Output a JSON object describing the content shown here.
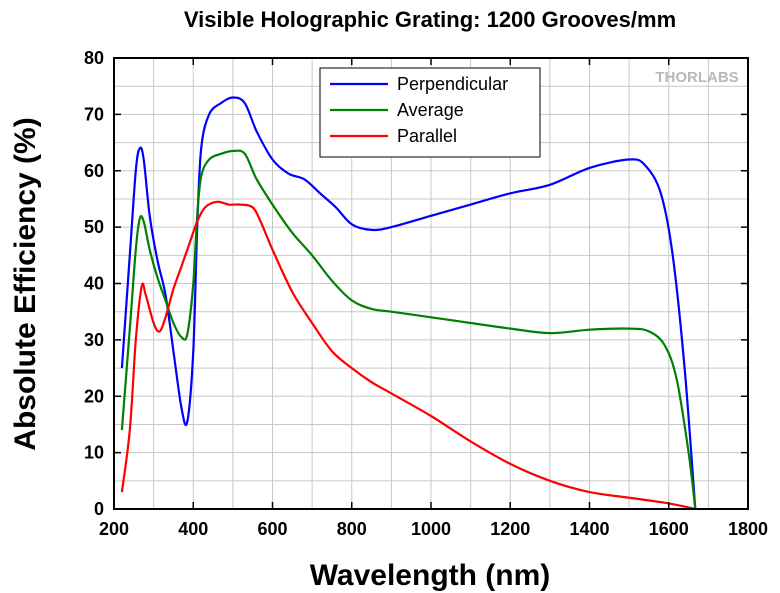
{
  "logo": "THORLABS",
  "chart_data": {
    "type": "line",
    "title": "Visible Holographic Grating: 1200 Grooves/mm",
    "xlabel": "Wavelength (nm)",
    "ylabel": "Absolute Efficiency (%)",
    "xlim": [
      200,
      1800
    ],
    "ylim": [
      0,
      80
    ],
    "xticks": [
      200,
      400,
      600,
      800,
      1000,
      1200,
      1400,
      1600,
      1800
    ],
    "yticks": [
      0,
      10,
      20,
      30,
      40,
      50,
      60,
      70,
      80
    ],
    "grid": true,
    "legend_position": "top-center",
    "series": [
      {
        "name": "Perpendicular",
        "color": "#0000ff",
        "points": [
          [
            220,
            25
          ],
          [
            240,
            45
          ],
          [
            255,
            60
          ],
          [
            265,
            64
          ],
          [
            275,
            62
          ],
          [
            290,
            52
          ],
          [
            310,
            44
          ],
          [
            330,
            38
          ],
          [
            350,
            28
          ],
          [
            370,
            18
          ],
          [
            385,
            15.5
          ],
          [
            400,
            28
          ],
          [
            410,
            50
          ],
          [
            420,
            64
          ],
          [
            440,
            70
          ],
          [
            470,
            72
          ],
          [
            500,
            73
          ],
          [
            530,
            72
          ],
          [
            560,
            67
          ],
          [
            600,
            62
          ],
          [
            640,
            59.5
          ],
          [
            680,
            58.5
          ],
          [
            720,
            56
          ],
          [
            760,
            53.5
          ],
          [
            800,
            50.5
          ],
          [
            850,
            49.5
          ],
          [
            900,
            50
          ],
          [
            1000,
            52
          ],
          [
            1100,
            54
          ],
          [
            1200,
            56
          ],
          [
            1300,
            57.5
          ],
          [
            1400,
            60.5
          ],
          [
            1500,
            62
          ],
          [
            1540,
            61
          ],
          [
            1580,
            56
          ],
          [
            1610,
            45
          ],
          [
            1640,
            25
          ],
          [
            1667,
            0
          ]
        ]
      },
      {
        "name": "Average",
        "color": "#008000",
        "points": [
          [
            220,
            14
          ],
          [
            240,
            32
          ],
          [
            255,
            46
          ],
          [
            265,
            51.5
          ],
          [
            275,
            51
          ],
          [
            290,
            46
          ],
          [
            310,
            41
          ],
          [
            330,
            37
          ],
          [
            350,
            33
          ],
          [
            370,
            30.5
          ],
          [
            385,
            31
          ],
          [
            400,
            40
          ],
          [
            410,
            52
          ],
          [
            420,
            59
          ],
          [
            440,
            62
          ],
          [
            470,
            63
          ],
          [
            500,
            63.5
          ],
          [
            530,
            63
          ],
          [
            560,
            58.5
          ],
          [
            600,
            54
          ],
          [
            650,
            49
          ],
          [
            700,
            45
          ],
          [
            750,
            40.5
          ],
          [
            800,
            37
          ],
          [
            850,
            35.5
          ],
          [
            900,
            35
          ],
          [
            1000,
            34
          ],
          [
            1100,
            33
          ],
          [
            1200,
            32
          ],
          [
            1300,
            31.2
          ],
          [
            1400,
            31.8
          ],
          [
            1500,
            32
          ],
          [
            1550,
            31.5
          ],
          [
            1590,
            29
          ],
          [
            1620,
            23
          ],
          [
            1650,
            10
          ],
          [
            1667,
            0
          ]
        ]
      },
      {
        "name": "Parallel",
        "color": "#ff0000",
        "points": [
          [
            220,
            3
          ],
          [
            240,
            14
          ],
          [
            255,
            30
          ],
          [
            270,
            39.5
          ],
          [
            280,
            38
          ],
          [
            300,
            33
          ],
          [
            315,
            31.5
          ],
          [
            330,
            34
          ],
          [
            350,
            39
          ],
          [
            370,
            43
          ],
          [
            390,
            47
          ],
          [
            410,
            51
          ],
          [
            430,
            53.5
          ],
          [
            460,
            54.5
          ],
          [
            490,
            54
          ],
          [
            520,
            54
          ],
          [
            550,
            53.5
          ],
          [
            570,
            51
          ],
          [
            600,
            46
          ],
          [
            650,
            38.5
          ],
          [
            700,
            33
          ],
          [
            750,
            28
          ],
          [
            800,
            25
          ],
          [
            850,
            22.5
          ],
          [
            900,
            20.5
          ],
          [
            1000,
            16.5
          ],
          [
            1100,
            12
          ],
          [
            1200,
            8
          ],
          [
            1300,
            5
          ],
          [
            1400,
            3
          ],
          [
            1500,
            2
          ],
          [
            1600,
            1
          ],
          [
            1667,
            0
          ]
        ]
      }
    ]
  }
}
